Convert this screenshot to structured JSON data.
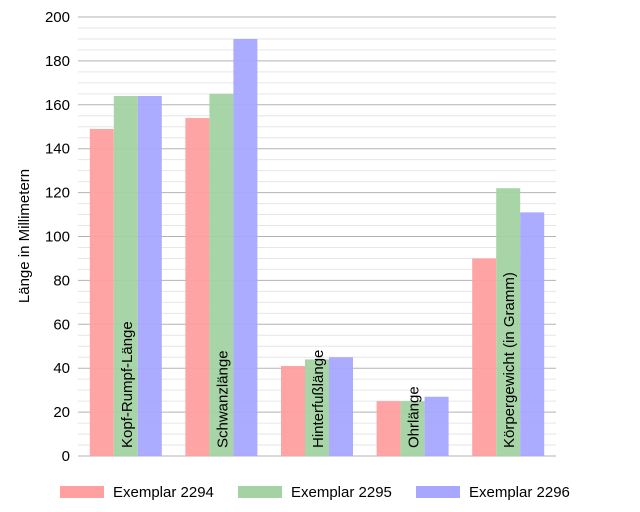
{
  "chart_data": {
    "type": "bar",
    "title": "",
    "xlabel": "",
    "ylabel": "Länge in Millimetern",
    "ylim": [
      0,
      200
    ],
    "yticks": [
      0,
      20,
      40,
      60,
      80,
      100,
      120,
      140,
      160,
      180,
      200
    ],
    "grid": true,
    "legend_position": "bottom",
    "categories": [
      "Kopf-Rumpf-Länge",
      "Schwanzlänge",
      "Hinterfußlänge",
      "Ohrlänge",
      "Körpergewicht (in Gramm)"
    ],
    "series": [
      {
        "name": "Exemplar 2294",
        "color": "#ff9f9f",
        "values": [
          149,
          154,
          41,
          25,
          90
        ]
      },
      {
        "name": "Exemplar 2295",
        "color": "#a3d3a3",
        "values": [
          164,
          165,
          44,
          25,
          122
        ]
      },
      {
        "name": "Exemplar 2296",
        "color": "#a7a7ff",
        "values": [
          164,
          190,
          45,
          27,
          111
        ]
      }
    ]
  }
}
